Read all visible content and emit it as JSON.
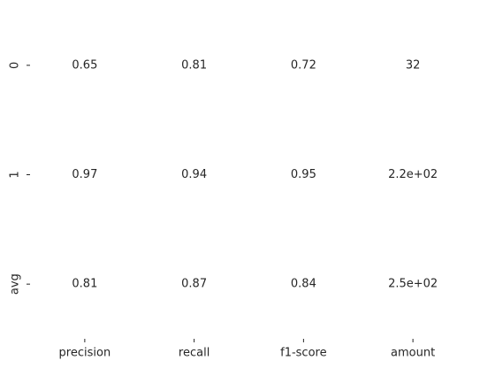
{
  "chart_data": {
    "type": "heatmap",
    "title": "",
    "xlabel": "",
    "ylabel": "",
    "columns": [
      "precision",
      "recall",
      "f1-score",
      "amount"
    ],
    "rows": [
      "0",
      "1",
      "avg"
    ],
    "cells": [
      [
        "0.65",
        "0.81",
        "0.72",
        "32"
      ],
      [
        "0.97",
        "0.94",
        "0.95",
        "2.2e+02"
      ],
      [
        "0.81",
        "0.87",
        "0.84",
        "2.5e+02"
      ]
    ],
    "values": [
      [
        0.65,
        0.81,
        0.72,
        32
      ],
      [
        0.97,
        0.94,
        0.95,
        220
      ],
      [
        0.81,
        0.87,
        0.84,
        250
      ]
    ],
    "colorbar": false,
    "background": "#ffffff",
    "text_color": "#262626"
  }
}
